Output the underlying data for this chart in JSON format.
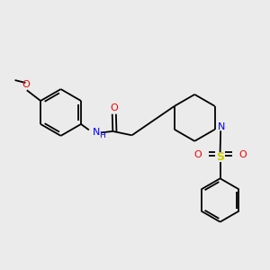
{
  "background_color": "#ebebeb",
  "colors": {
    "N": "#0000ff",
    "O": "#ff0000",
    "S": "#cccc00",
    "bond": "#000000"
  },
  "lw": 1.3
}
